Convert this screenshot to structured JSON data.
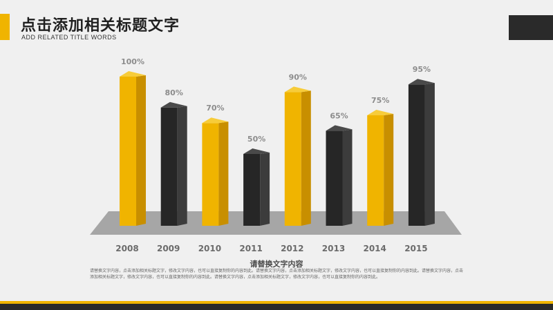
{
  "header": {
    "title": "点击添加相关标题文字",
    "subtitle": "ADD RELATED TITLE WORDS"
  },
  "body": {
    "title": "请替换文字内容",
    "text": "请替换文字内容，点击添加相关标题文字，修改文字内容，也可以直接复制你的内容到此。请替换文字内容，点击添加相关标题文字，修改文字内容，也可以直接复制你的内容到此。请替换文字内容，点击添加相关标题文字，修改文字内容，也可以直接复制你的内容到此。请替换文字内容，点击添加相关标题文字，修改文字内容，也可以直接复制你的内容到此。"
  },
  "colors": {
    "accent": "#f0b400",
    "dark": "#2a2a2a"
  },
  "chart_data": {
    "type": "bar",
    "categories": [
      "2008",
      "2009",
      "2010",
      "2011",
      "2012",
      "2013",
      "2014",
      "2015"
    ],
    "values": [
      100,
      80,
      70,
      50,
      90,
      65,
      75,
      95
    ],
    "data_labels": [
      "100%",
      "80%",
      "70%",
      "50%",
      "90%",
      "65%",
      "75%",
      "95%"
    ],
    "bar_colors": [
      "yellow",
      "dark",
      "yellow",
      "dark",
      "yellow",
      "dark",
      "yellow",
      "dark"
    ],
    "unit": "%",
    "ylim": [
      0,
      100
    ],
    "grid": false,
    "legend": "none",
    "style": "3d-bars-on-platform"
  }
}
